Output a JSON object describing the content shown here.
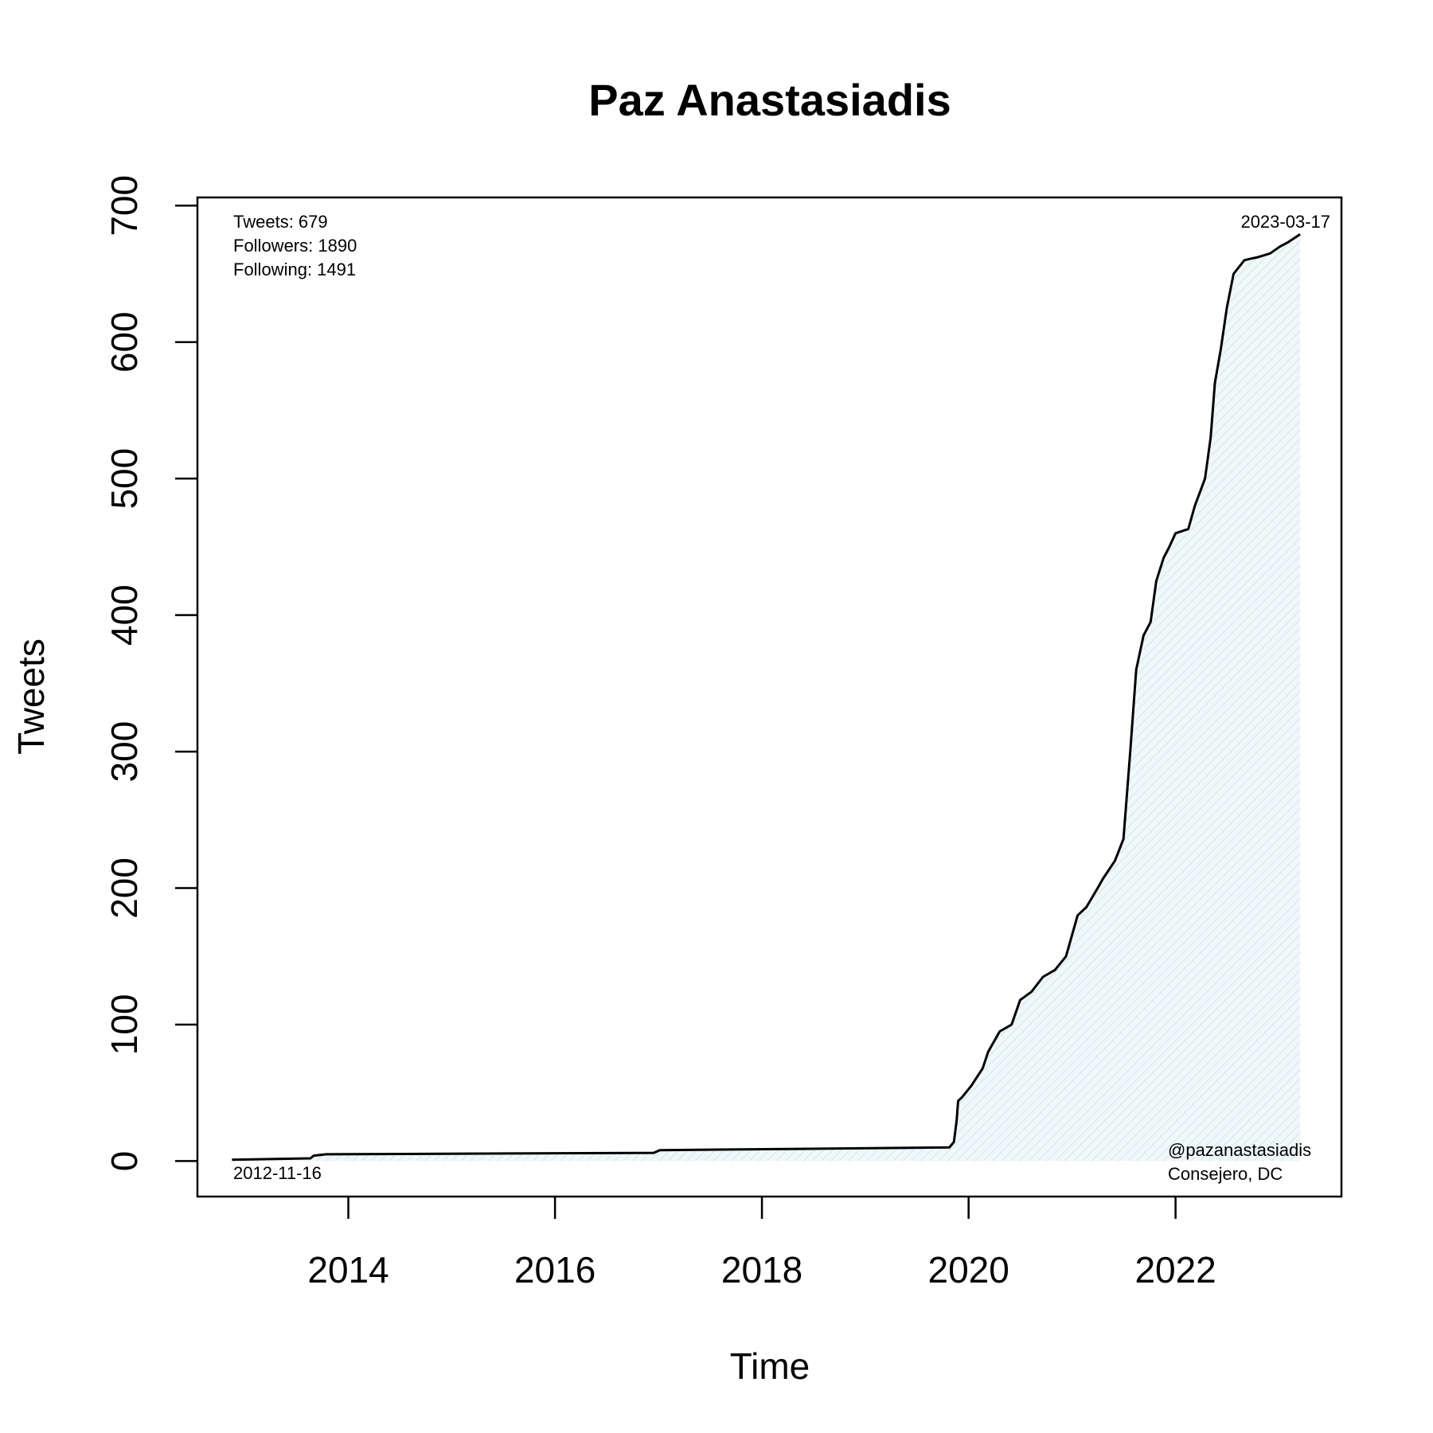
{
  "chart_data": {
    "type": "area",
    "title": "Paz Anastasiadis",
    "xlabel": "Time",
    "ylabel": "Tweets",
    "xlim": [
      "2012-07-17",
      "2023-08-10"
    ],
    "ylim": [
      -26,
      706
    ],
    "x_ticks": [
      "2014",
      "2016",
      "2018",
      "2020",
      "2022"
    ],
    "y_ticks": [
      "0",
      "100",
      "200",
      "300",
      "400",
      "500",
      "600",
      "700"
    ],
    "grid": false,
    "colors": {
      "line": "#000000",
      "fill": "#e8f3f6",
      "frame": "#000000"
    },
    "annotations": {
      "tweets": "Tweets: 679",
      "followers": "Followers: 1890",
      "following": "Following: 1491",
      "start_date": "2012-11-16",
      "end_date": "2023-03-17",
      "handle": "@pazanastasiadis",
      "location": "Consejero, DC"
    },
    "series": [
      {
        "x": [
          "2012-11-16",
          "2013-08-20",
          "2013-09-01",
          "2013-10-15",
          "2016-12-15",
          "2017-01-05",
          "2019-10-25",
          "2019-11-10",
          "2019-11-20",
          "2019-11-25",
          "2019-12-10",
          "2020-01-10",
          "2020-02-20",
          "2020-03-10",
          "2020-04-20",
          "2020-06-01",
          "2020-07-01",
          "2020-08-10",
          "2020-09-20",
          "2020-11-01",
          "2020-12-10",
          "2021-01-20",
          "2021-02-20",
          "2021-04-01",
          "2021-04-20",
          "2021-06-01",
          "2021-07-01",
          "2021-07-25",
          "2021-08-15",
          "2021-09-10",
          "2021-10-05",
          "2021-10-25",
          "2021-11-20",
          "2021-12-10",
          "2022-01-01",
          "2022-02-15",
          "2022-03-10",
          "2022-04-15",
          "2022-05-05",
          "2022-05-20",
          "2022-06-10",
          "2022-07-01",
          "2022-07-25",
          "2022-09-01",
          "2022-09-20",
          "2022-10-15",
          "2022-12-01",
          "2023-01-05",
          "2023-02-01",
          "2023-03-17"
        ],
        "y": [
          1,
          2,
          4,
          5,
          6,
          8,
          10,
          14,
          30,
          44,
          47,
          55,
          68,
          80,
          95,
          100,
          118,
          124,
          135,
          140,
          150,
          180,
          186,
          200,
          207,
          220,
          236,
          300,
          360,
          385,
          395,
          425,
          442,
          450,
          460,
          463,
          480,
          500,
          530,
          570,
          595,
          625,
          650,
          660,
          661,
          662,
          665,
          670,
          673,
          679
        ]
      }
    ]
  }
}
